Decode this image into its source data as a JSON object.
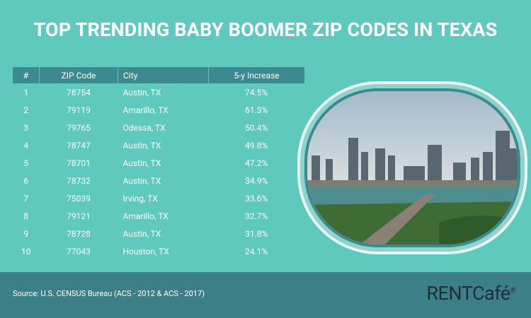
{
  "header": {
    "title": "TOP TRENDING BABY BOOMER ZIP CODES IN TEXAS"
  },
  "table": {
    "columns": [
      "#",
      "ZIP Code",
      "City",
      "5-y Increase"
    ],
    "rows": [
      [
        "1",
        "78754",
        "Austin, TX",
        "74.5%"
      ],
      [
        "2",
        "79119",
        "Amarillo, TX",
        "61.3%"
      ],
      [
        "3",
        "79765",
        "Odessa, TX",
        "50.4%"
      ],
      [
        "4",
        "78747",
        "Austin, TX",
        "49.8%"
      ],
      [
        "5",
        "78701",
        "Austin, TX",
        "47.2%"
      ],
      [
        "6",
        "78732",
        "Austin, TX",
        "34.9%"
      ],
      [
        "7",
        "75039",
        "Irving, TX",
        "33.6%"
      ],
      [
        "8",
        "79121",
        "Amarillo, TX",
        "32.7%"
      ],
      [
        "9",
        "78728",
        "Austin, TX",
        "31.8%"
      ],
      [
        "10",
        "77043",
        "Houston, TX",
        "24.1%"
      ]
    ]
  },
  "footer": {
    "source": "Source: U.S. CENSUS Bureau (ACS - 2012 & ACS - 2017)",
    "logo": "RENTCafé",
    "logo_mark": "®"
  }
}
